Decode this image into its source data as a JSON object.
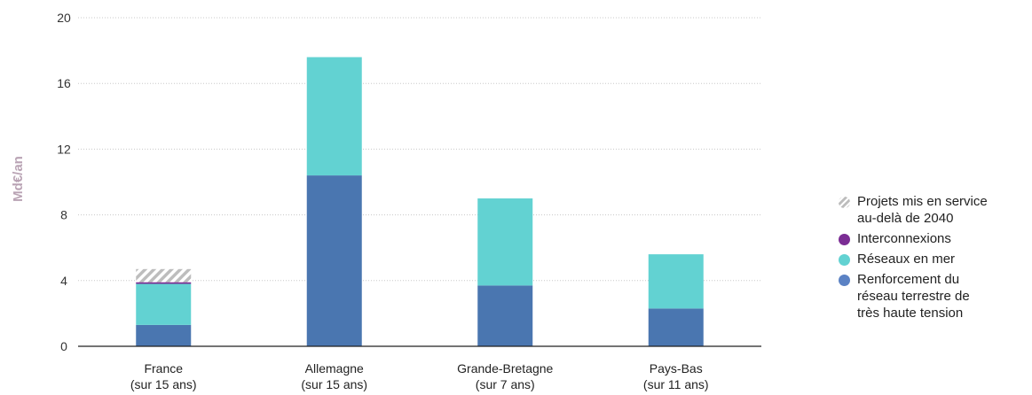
{
  "chart_data": {
    "type": "bar",
    "stacked": true,
    "ylabel": "Md€/an",
    "ylim": [
      0,
      20
    ],
    "yticks": [
      0,
      4,
      8,
      12,
      16,
      20
    ],
    "grid": true,
    "legend_position": "right",
    "categories": [
      {
        "line1": "France",
        "line2": "(sur 15 ans)"
      },
      {
        "line1": "Allemagne",
        "line2": "(sur 15 ans)"
      },
      {
        "line1": "Grande-Bretagne",
        "line2": "(sur 7 ans)"
      },
      {
        "line1": "Pays-Bas",
        "line2": "(sur 11 ans)"
      }
    ],
    "series": [
      {
        "name": "Renforcement du réseau terrestre de très haute tension",
        "color": "#4a76b0",
        "values": [
          1.3,
          10.4,
          3.7,
          2.3
        ]
      },
      {
        "name": "Réseaux en mer",
        "color": "#62d2d2",
        "values": [
          2.5,
          7.2,
          5.3,
          3.3
        ]
      },
      {
        "name": "Interconnexions",
        "color": "#7b2d94",
        "values": [
          0.1,
          0,
          0,
          0
        ]
      },
      {
        "name": "Projets mis en service au-delà de 2040",
        "color": "#bdbdbd",
        "pattern": "hatch",
        "values": [
          0.8,
          0,
          0,
          0
        ]
      }
    ]
  },
  "legend": [
    {
      "lines": [
        "Projets mis en service",
        "au-delà de 2040"
      ],
      "color": "#bdbdbd",
      "pattern": "hatch"
    },
    {
      "lines": [
        "Interconnexions"
      ],
      "color": "#7b2d94"
    },
    {
      "lines": [
        "Réseaux en mer"
      ],
      "color": "#62d2d2"
    },
    {
      "lines": [
        "Renforcement du",
        "réseau terrestre de",
        "très haute tension"
      ],
      "color": "#5b82c4"
    }
  ]
}
